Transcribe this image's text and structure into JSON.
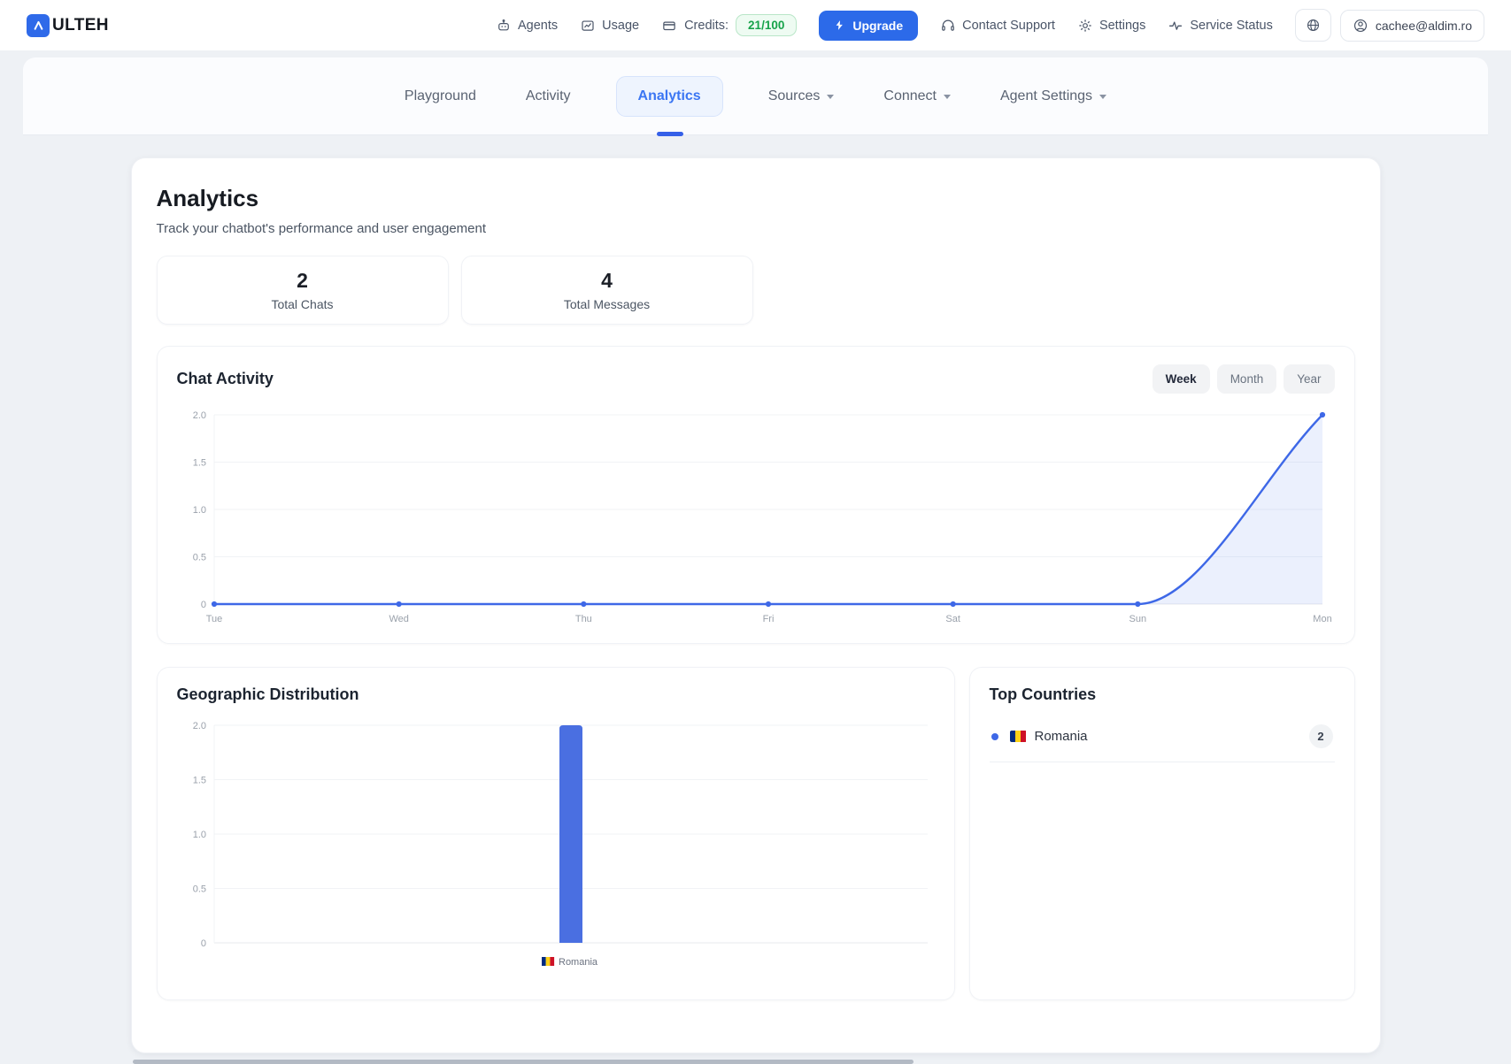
{
  "header": {
    "logo_text": "ULTEH",
    "menu_left": [
      {
        "label": "Agents",
        "icon": "robot-icon"
      },
      {
        "label": "Usage",
        "icon": "usage-chart-icon"
      }
    ],
    "credits": {
      "label": "Credits:",
      "value": "21/100"
    },
    "upgrade": {
      "label": "Upgrade"
    },
    "menu_right": [
      {
        "label": "Contact Support",
        "icon": "headset-icon"
      },
      {
        "label": "Settings",
        "icon": "gear-icon"
      },
      {
        "label": "Service Status",
        "icon": "pulse-icon"
      }
    ],
    "account": {
      "email": "cachee@aldim.ro"
    }
  },
  "tabs": {
    "items": [
      "Playground",
      "Activity",
      "Analytics",
      "Sources",
      "Connect",
      "Agent Settings"
    ],
    "active": "Analytics",
    "dropdown_tabs": [
      "Sources",
      "Connect",
      "Agent Settings"
    ]
  },
  "page": {
    "title": "Analytics",
    "subtitle": "Track your chatbot's performance and user engagement"
  },
  "stats": [
    {
      "value": "2",
      "label": "Total Chats"
    },
    {
      "value": "4",
      "label": "Total Messages"
    }
  ],
  "chat_activity": {
    "title": "Chat Activity",
    "ranges": [
      "Week",
      "Month",
      "Year"
    ],
    "active_range": "Week"
  },
  "geo": {
    "title": "Geographic Distribution"
  },
  "top_countries": {
    "title": "Top Countries",
    "items": [
      {
        "name": "Romania",
        "count": "2",
        "flag": "romania-flag"
      }
    ]
  },
  "colors": {
    "accent_blue": "#3e68e7",
    "bar_blue": "#4a6fe1",
    "area_fill": "rgba(62,104,231,0.10)",
    "grid": "#f1f3f6",
    "axis": "#e7eaee",
    "tick_text": "#9aa1ab",
    "credits_green": "#17a34a"
  },
  "chart_data": [
    {
      "type": "line",
      "title": "Chat Activity",
      "x": [
        "Tue",
        "Wed",
        "Thu",
        "Fri",
        "Sat",
        "Sun",
        "Mon"
      ],
      "series": [
        {
          "name": "Chats",
          "values": [
            0,
            0,
            0,
            0,
            0,
            0,
            2
          ]
        }
      ],
      "ylim": [
        0,
        2
      ],
      "yticks": [
        "0",
        "0.5",
        "1.0",
        "1.5",
        "2.0"
      ],
      "grid": true,
      "legend": false,
      "area_fill": true
    },
    {
      "type": "bar",
      "title": "Geographic Distribution",
      "categories": [
        "Romania"
      ],
      "values": [
        2
      ],
      "ylim": [
        0,
        2
      ],
      "yticks": [
        "0",
        "0.5",
        "1.0",
        "1.5",
        "2.0"
      ],
      "grid": true,
      "legend": false
    }
  ]
}
